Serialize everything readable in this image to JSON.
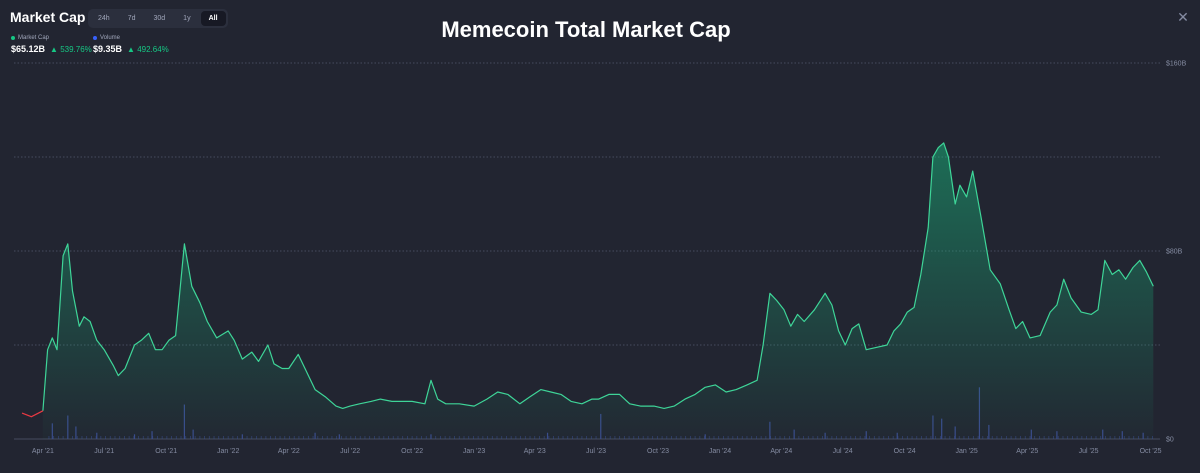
{
  "header": {
    "title": "Market Cap",
    "tabs": [
      {
        "label": "24h",
        "active": false
      },
      {
        "label": "7d",
        "active": false
      },
      {
        "label": "30d",
        "active": false
      },
      {
        "label": "1y",
        "active": false
      },
      {
        "label": "All",
        "active": true
      }
    ]
  },
  "legend": {
    "market_cap": {
      "label": "Market Cap",
      "value": "$65.12B",
      "change": "539.76%",
      "color": "#16c784"
    },
    "volume": {
      "label": "Volume",
      "value": "$9.35B",
      "change": "492.64%",
      "color": "#3861fb"
    }
  },
  "colors": {
    "line": "#3ed598",
    "fill": "#16c784",
    "volume": "#3b4a8c",
    "start": "#ea3943",
    "grid": "#525a6e"
  },
  "chart_data": {
    "type": "area",
    "title": "Memecoin Total Market Cap",
    "x_ticks": [
      "Apr '21",
      "Jul '21",
      "Oct '21",
      "Jan '22",
      "Apr '22",
      "Jul '22",
      "Oct '22",
      "Jan '23",
      "Apr '23",
      "Jul '23",
      "Oct '23",
      "Jan '24",
      "Apr '24",
      "Jul '24",
      "Oct '24",
      "Jan '25",
      "Apr '25",
      "Jul '25",
      "Oct '25"
    ],
    "y_ticks": [
      {
        "value": 0,
        "label": "$0"
      },
      {
        "value": 80,
        "label": "$80B"
      },
      {
        "value": 160,
        "label": "$160B"
      }
    ],
    "ylim": [
      0,
      160
    ],
    "xlim": [
      "2021-03-01",
      "2025-10-15"
    ],
    "series": [
      {
        "name": "Market Cap",
        "unit": "B USD",
        "points": [
          [
            "2021-03-01",
            11
          ],
          [
            "2021-03-15",
            9.5
          ],
          [
            "2021-04-01",
            12
          ],
          [
            "2021-04-08",
            38
          ],
          [
            "2021-04-15",
            43
          ],
          [
            "2021-04-22",
            38
          ],
          [
            "2021-05-01",
            78
          ],
          [
            "2021-05-08",
            83
          ],
          [
            "2021-05-15",
            63
          ],
          [
            "2021-05-25",
            48
          ],
          [
            "2021-06-01",
            52
          ],
          [
            "2021-06-10",
            50
          ],
          [
            "2021-06-20",
            42
          ],
          [
            "2021-07-01",
            38
          ],
          [
            "2021-07-15",
            31
          ],
          [
            "2021-07-22",
            27
          ],
          [
            "2021-08-01",
            30
          ],
          [
            "2021-08-15",
            40
          ],
          [
            "2021-08-25",
            42
          ],
          [
            "2021-09-05",
            45
          ],
          [
            "2021-09-15",
            38
          ],
          [
            "2021-09-25",
            38
          ],
          [
            "2021-10-05",
            42
          ],
          [
            "2021-10-15",
            44
          ],
          [
            "2021-10-28",
            83
          ],
          [
            "2021-11-08",
            65
          ],
          [
            "2021-11-20",
            58
          ],
          [
            "2021-12-01",
            50
          ],
          [
            "2021-12-15",
            43
          ],
          [
            "2022-01-01",
            46
          ],
          [
            "2022-01-10",
            42
          ],
          [
            "2022-01-22",
            34
          ],
          [
            "2022-02-05",
            37
          ],
          [
            "2022-02-15",
            33
          ],
          [
            "2022-03-01",
            40
          ],
          [
            "2022-03-10",
            32
          ],
          [
            "2022-03-22",
            30
          ],
          [
            "2022-04-01",
            30
          ],
          [
            "2022-04-15",
            36
          ],
          [
            "2022-04-25",
            30
          ],
          [
            "2022-05-10",
            21
          ],
          [
            "2022-05-25",
            18
          ],
          [
            "2022-06-10",
            14
          ],
          [
            "2022-06-20",
            13
          ],
          [
            "2022-07-01",
            14
          ],
          [
            "2022-07-15",
            15
          ],
          [
            "2022-08-01",
            16
          ],
          [
            "2022-08-15",
            17
          ],
          [
            "2022-09-01",
            16
          ],
          [
            "2022-09-15",
            16
          ],
          [
            "2022-10-01",
            16
          ],
          [
            "2022-10-20",
            15
          ],
          [
            "2022-10-29",
            25
          ],
          [
            "2022-11-08",
            17
          ],
          [
            "2022-11-20",
            15
          ],
          [
            "2022-12-10",
            15
          ],
          [
            "2023-01-01",
            14
          ],
          [
            "2023-01-20",
            17
          ],
          [
            "2023-02-05",
            20
          ],
          [
            "2023-02-20",
            19
          ],
          [
            "2023-03-10",
            15
          ],
          [
            "2023-03-25",
            18
          ],
          [
            "2023-04-10",
            21
          ],
          [
            "2023-04-25",
            20
          ],
          [
            "2023-05-10",
            19
          ],
          [
            "2023-05-25",
            16
          ],
          [
            "2023-06-10",
            15
          ],
          [
            "2023-06-25",
            17
          ],
          [
            "2023-07-05",
            17
          ],
          [
            "2023-07-20",
            19
          ],
          [
            "2023-08-05",
            19
          ],
          [
            "2023-08-20",
            15
          ],
          [
            "2023-09-05",
            14
          ],
          [
            "2023-09-25",
            14
          ],
          [
            "2023-10-10",
            13
          ],
          [
            "2023-10-25",
            14
          ],
          [
            "2023-11-10",
            17
          ],
          [
            "2023-11-25",
            19
          ],
          [
            "2023-12-10",
            22
          ],
          [
            "2023-12-25",
            23
          ],
          [
            "2024-01-10",
            20
          ],
          [
            "2024-01-25",
            21
          ],
          [
            "2024-02-10",
            23
          ],
          [
            "2024-02-25",
            25
          ],
          [
            "2024-03-05",
            40
          ],
          [
            "2024-03-15",
            62
          ],
          [
            "2024-03-25",
            59
          ],
          [
            "2024-04-05",
            55
          ],
          [
            "2024-04-15",
            48
          ],
          [
            "2024-04-25",
            53
          ],
          [
            "2024-05-05",
            50
          ],
          [
            "2024-05-20",
            55
          ],
          [
            "2024-06-05",
            62
          ],
          [
            "2024-06-15",
            57
          ],
          [
            "2024-06-25",
            46
          ],
          [
            "2024-07-05",
            40
          ],
          [
            "2024-07-15",
            47
          ],
          [
            "2024-07-25",
            49
          ],
          [
            "2024-08-05",
            38
          ],
          [
            "2024-08-20",
            39
          ],
          [
            "2024-09-05",
            40
          ],
          [
            "2024-09-15",
            46
          ],
          [
            "2024-09-25",
            49
          ],
          [
            "2024-10-05",
            54
          ],
          [
            "2024-10-15",
            56
          ],
          [
            "2024-10-25",
            70
          ],
          [
            "2024-11-05",
            90
          ],
          [
            "2024-11-12",
            120
          ],
          [
            "2024-11-20",
            124
          ],
          [
            "2024-11-28",
            126
          ],
          [
            "2024-12-05",
            120
          ],
          [
            "2024-12-15",
            100
          ],
          [
            "2024-12-22",
            108
          ],
          [
            "2025-01-01",
            103
          ],
          [
            "2025-01-10",
            114
          ],
          [
            "2025-01-22",
            95
          ],
          [
            "2025-02-05",
            72
          ],
          [
            "2025-02-20",
            66
          ],
          [
            "2025-03-05",
            55
          ],
          [
            "2025-03-15",
            47
          ],
          [
            "2025-03-25",
            50
          ],
          [
            "2025-04-05",
            43
          ],
          [
            "2025-04-20",
            44
          ],
          [
            "2025-05-05",
            54
          ],
          [
            "2025-05-15",
            57
          ],
          [
            "2025-05-25",
            68
          ],
          [
            "2025-06-05",
            60
          ],
          [
            "2025-06-20",
            54
          ],
          [
            "2025-07-05",
            53
          ],
          [
            "2025-07-15",
            55
          ],
          [
            "2025-07-25",
            76
          ],
          [
            "2025-08-05",
            70
          ],
          [
            "2025-08-15",
            72
          ],
          [
            "2025-08-25",
            68
          ],
          [
            "2025-09-05",
            73
          ],
          [
            "2025-09-15",
            76
          ],
          [
            "2025-09-25",
            71
          ],
          [
            "2025-10-05",
            65
          ]
        ]
      },
      {
        "name": "Volume",
        "unit": "B USD",
        "points": [
          [
            "2021-04-15",
            10
          ],
          [
            "2021-05-08",
            15
          ],
          [
            "2021-05-20",
            8
          ],
          [
            "2021-06-20",
            4
          ],
          [
            "2021-08-15",
            3
          ],
          [
            "2021-09-10",
            5
          ],
          [
            "2021-10-28",
            22
          ],
          [
            "2021-11-10",
            6
          ],
          [
            "2022-01-22",
            3
          ],
          [
            "2022-05-10",
            4
          ],
          [
            "2022-06-15",
            3
          ],
          [
            "2022-10-29",
            3
          ],
          [
            "2023-04-20",
            4
          ],
          [
            "2023-07-08",
            16
          ],
          [
            "2023-12-10",
            3
          ],
          [
            "2024-03-15",
            11
          ],
          [
            "2024-04-20",
            6
          ],
          [
            "2024-06-05",
            4
          ],
          [
            "2024-08-05",
            5
          ],
          [
            "2024-09-20",
            4
          ],
          [
            "2024-11-12",
            15
          ],
          [
            "2024-11-25",
            13
          ],
          [
            "2024-12-15",
            8
          ],
          [
            "2025-01-20",
            33
          ],
          [
            "2025-02-03",
            9
          ],
          [
            "2025-04-07",
            6
          ],
          [
            "2025-05-15",
            5
          ],
          [
            "2025-07-22",
            6
          ],
          [
            "2025-08-20",
            5
          ],
          [
            "2025-09-20",
            4
          ]
        ]
      }
    ]
  }
}
